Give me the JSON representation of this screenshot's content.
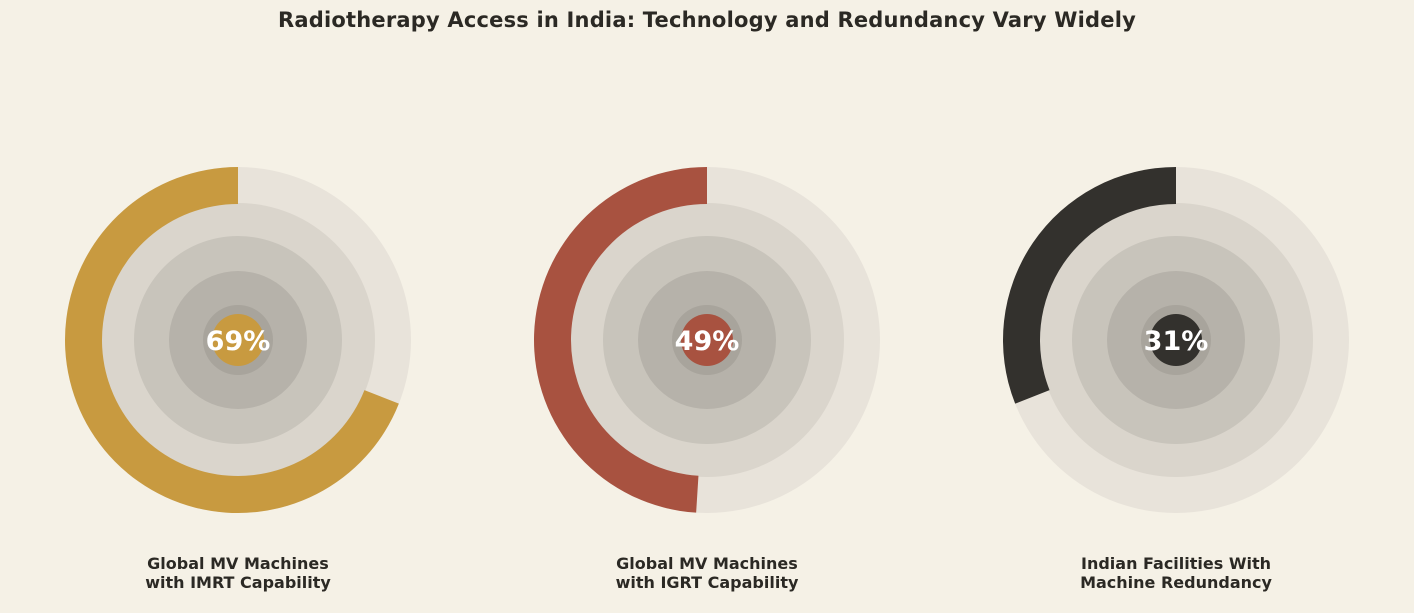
{
  "title": "Radiotherapy Access in India: Technology and Redundancy Vary Widely",
  "chart_data": {
    "type": "pie",
    "charts": [
      {
        "value": 69,
        "value_label": "69%",
        "label_lines": [
          "Global MV Machines",
          "with IMRT Capability"
        ],
        "color": "#c89a40"
      },
      {
        "value": 49,
        "value_label": "49%",
        "label_lines": [
          "Global MV Machines",
          "with IGRT Capability"
        ],
        "color": "#a85240"
      },
      {
        "value": 31,
        "value_label": "31%",
        "label_lines": [
          "Indian Facilities With",
          "Machine Redundancy"
        ],
        "color": "#33312d"
      }
    ],
    "ring_colors": [
      "#e8e3da",
      "#dad5cc",
      "#c8c4bb",
      "#b6b2aa",
      "#a8a49c"
    ]
  }
}
